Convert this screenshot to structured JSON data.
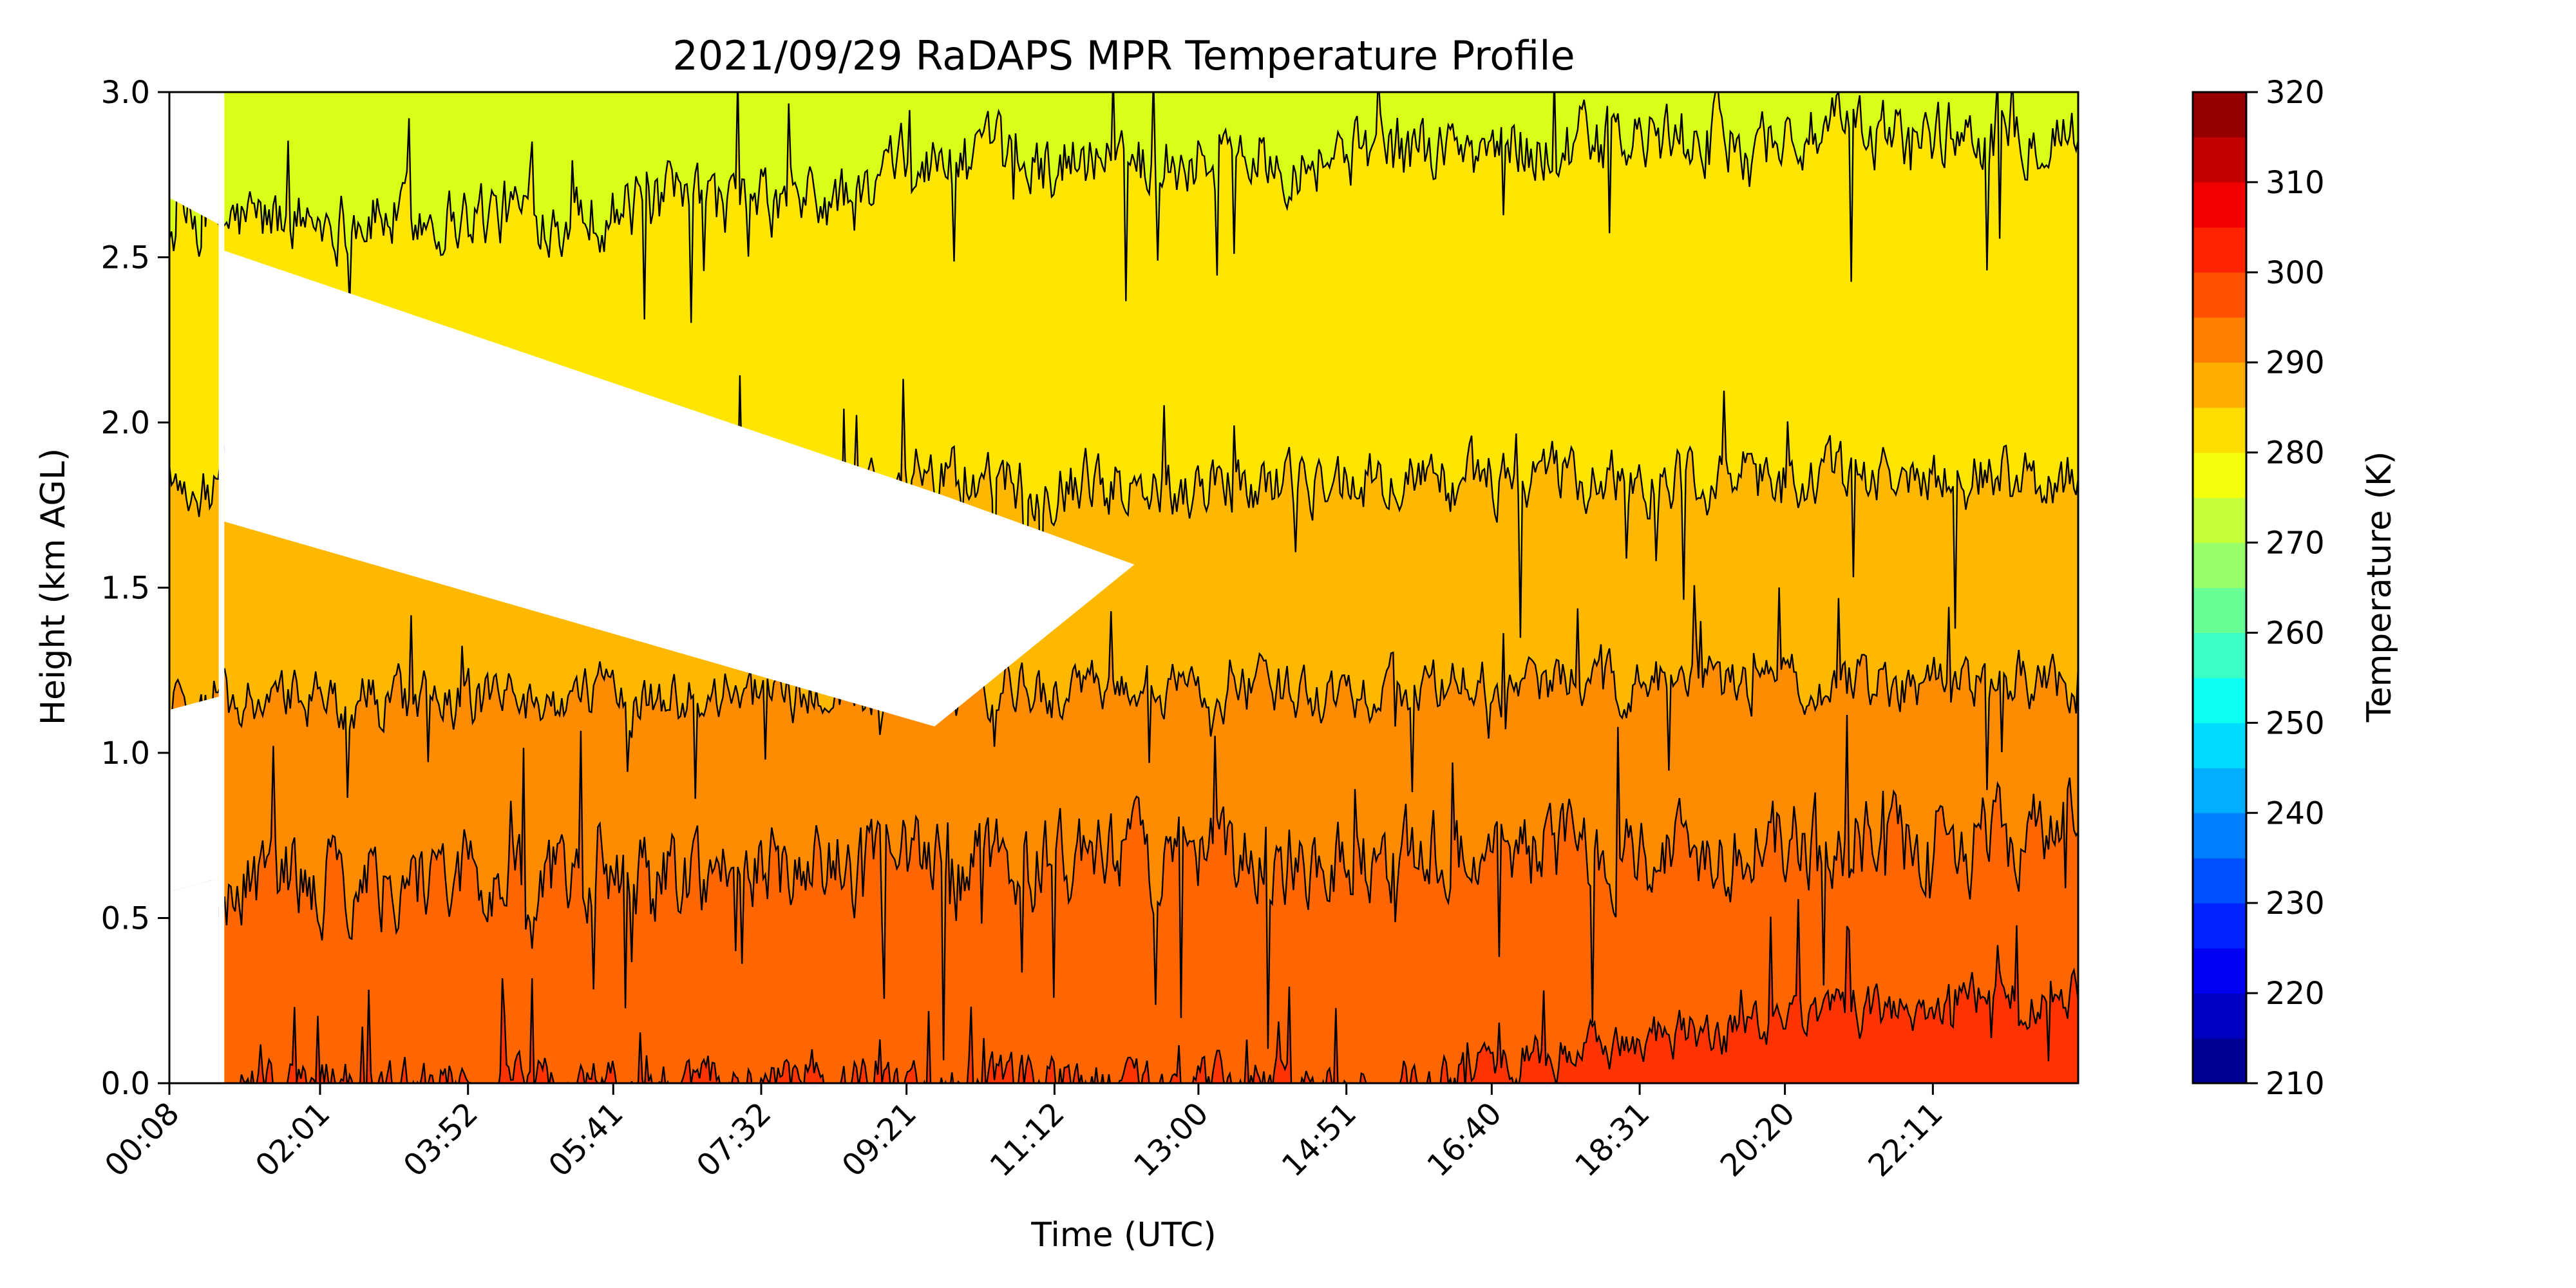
{
  "chart_data": {
    "type": "heatmap",
    "title": "2021/09/29 RaDAPS MPR Temperature Profile",
    "xlabel": "Time (UTC)",
    "ylabel": "Height (km AGL)",
    "x_tick_labels": [
      "00:08",
      "02:01",
      "03:52",
      "05:41",
      "07:32",
      "09:21",
      "11:12",
      "13:00",
      "14:51",
      "16:40",
      "18:31",
      "20:20",
      "22:11"
    ],
    "x_tick_hours": [
      0.133,
      2.017,
      3.867,
      5.683,
      7.533,
      9.35,
      11.2,
      13.0,
      14.85,
      16.667,
      18.517,
      20.333,
      22.183
    ],
    "x_range_hours": [
      0.133,
      24.0
    ],
    "y_range": [
      0.0,
      3.0
    ],
    "y_ticks": [
      "0.0",
      "0.5",
      "1.0",
      "1.5",
      "2.0",
      "2.5",
      "3.0"
    ],
    "y_tick_values": [
      0.0,
      0.5,
      1.0,
      1.5,
      2.0,
      2.5,
      3.0
    ],
    "colorbar": {
      "label": "Temperature (K)",
      "range": [
        210,
        320
      ],
      "levels": 22,
      "ticks": [
        "210",
        "220",
        "230",
        "240",
        "250",
        "260",
        "270",
        "280",
        "290",
        "300",
        "310",
        "320"
      ],
      "tick_values": [
        210,
        220,
        230,
        240,
        250,
        260,
        270,
        280,
        290,
        300,
        310,
        320
      ],
      "colormap": "jet"
    },
    "contour_levels_K": [
      275,
      280,
      285,
      290,
      295,
      300,
      305
    ],
    "band_colors": {
      "above_275": "#d9ff18",
      "275_280": "#ffe500",
      "280_285": "#ffb800",
      "285_290": "#ff8c00",
      "290_295": "#ff6600",
      "295_300": "#ff3300"
    },
    "data_gap_hours": [
      0.75,
      0.82
    ],
    "contour_mean_height_km": {
      "275": 2.6,
      "280": 1.8,
      "285": 1.15,
      "290": 0.6,
      "295": 0.05
    }
  }
}
